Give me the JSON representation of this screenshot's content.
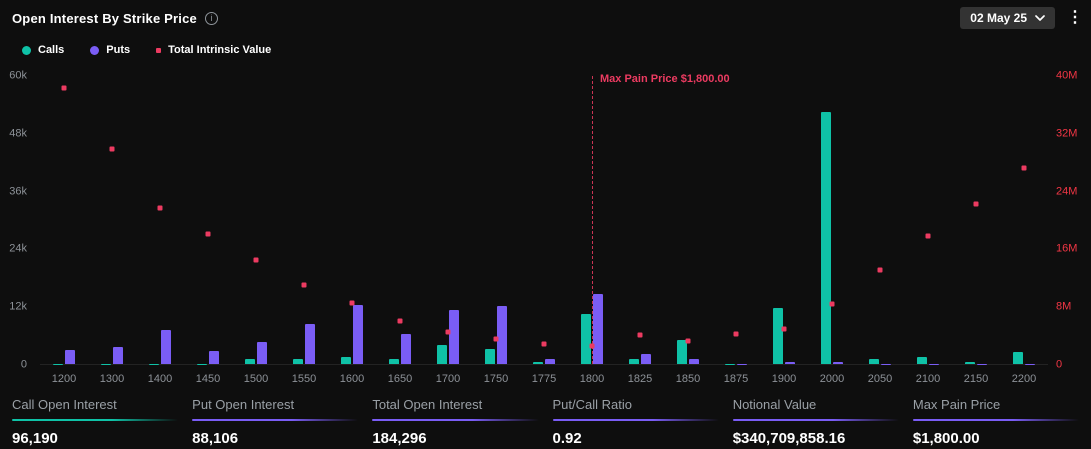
{
  "header": {
    "title": "Open Interest By Strike Price",
    "date_label": "02 May 25"
  },
  "legend": [
    {
      "label": "Calls",
      "color": "#0fc2a7",
      "shape": "circle"
    },
    {
      "label": "Puts",
      "color": "#7a5df5",
      "shape": "circle"
    },
    {
      "label": "Total Intrinsic Value",
      "color": "#ec3b61",
      "shape": "square"
    }
  ],
  "chart_data": {
    "type": "bar",
    "title": "Open Interest By Strike Price",
    "grid": false,
    "legend_position": "top-left",
    "categories": [
      1200,
      1300,
      1400,
      1450,
      1500,
      1550,
      1600,
      1650,
      1700,
      1750,
      1775,
      1800,
      1825,
      1850,
      1875,
      1900,
      2000,
      2050,
      2100,
      2150,
      2200
    ],
    "series": [
      {
        "name": "Calls",
        "type": "bar",
        "axis": "left",
        "color": "#0fc2a7",
        "values": [
          100,
          100,
          100,
          100,
          1000,
          1000,
          1400,
          1000,
          4000,
          3200,
          400,
          10500,
          1000,
          5000,
          100,
          11700,
          52500,
          1000,
          1400,
          500,
          2500
        ]
      },
      {
        "name": "Puts",
        "type": "bar",
        "axis": "left",
        "color": "#7a5df5",
        "values": [
          3000,
          3500,
          7000,
          2800,
          4600,
          8400,
          12200,
          6300,
          11200,
          12000,
          1000,
          14500,
          2000,
          1000,
          100,
          500,
          500,
          100,
          100,
          100,
          100
        ]
      },
      {
        "name": "Total Intrinsic Value",
        "type": "scatter",
        "axis": "right",
        "color": "#ec3b61",
        "values": [
          38300000,
          29900000,
          21700000,
          18000000,
          14500000,
          11000000,
          8500000,
          6000000,
          4500000,
          3500000,
          2800000,
          2500000,
          4000000,
          3200000,
          4200000,
          4800000,
          8400000,
          13000000,
          17800000,
          22200000,
          27200000
        ]
      }
    ],
    "left_axis": {
      "ticks": [
        "0",
        "12k",
        "24k",
        "36k",
        "48k",
        "60k"
      ],
      "max": 60000
    },
    "right_axis": {
      "ticks": [
        "0",
        "8M",
        "16M",
        "24M",
        "32M",
        "40M"
      ],
      "max": 40000000,
      "color": "#f23645"
    },
    "annotation": {
      "label": "Max Pain Price $1,800.00",
      "category": 1800,
      "color": "#ec3b61"
    }
  },
  "stats": [
    {
      "label": "Call Open Interest",
      "value": "96,190",
      "accent": "#0fc2a7"
    },
    {
      "label": "Put Open Interest",
      "value": "88,106",
      "accent": "#7a5df5"
    },
    {
      "label": "Total Open Interest",
      "value": "184,296",
      "accent": "#7a5df5"
    },
    {
      "label": "Put/Call Ratio",
      "value": "0.92",
      "accent": "#7a5df5"
    },
    {
      "label": "Notional Value",
      "value": "$340,709,858.16",
      "accent": "#7a5df5"
    },
    {
      "label": "Max Pain Price",
      "value": "$1,800.00",
      "accent": "#7a5df5"
    }
  ]
}
